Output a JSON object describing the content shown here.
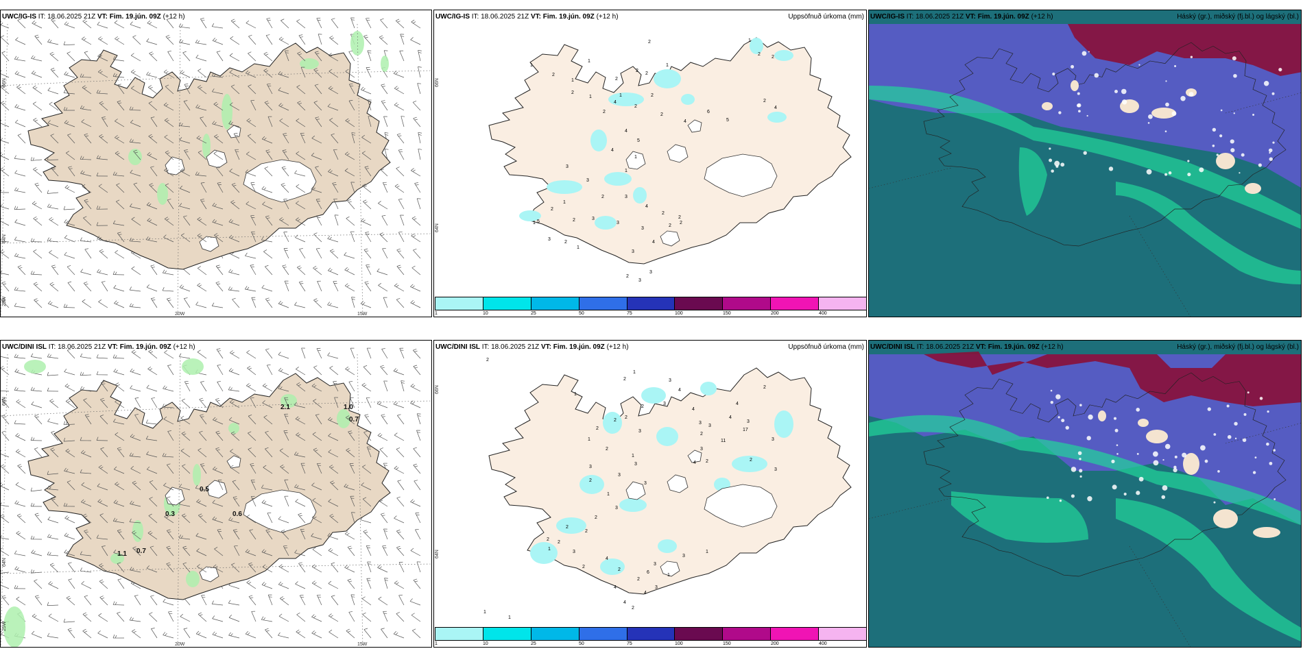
{
  "panels": {
    "top_left": {
      "model": "UWC/IG-IS",
      "it_label": "IT:",
      "it": "18.06.2025 21Z",
      "vt_label": "VT:",
      "vt": "Fim. 19.jún. 09Z",
      "lead": "(+12 h)"
    },
    "top_mid": {
      "model": "UWC/IG-IS",
      "it_label": "IT:",
      "it": "18.06.2025 21Z",
      "vt_label": "VT:",
      "vt": "Fim. 19.jún. 09Z",
      "lead": "(+12 h)",
      "right_title": "Uppsöfnuð úrkoma (mm)"
    },
    "top_right": {
      "model": "UWC/IG-IS",
      "it_label": "IT:",
      "it": "18.06.2025 21Z",
      "vt_label": "VT:",
      "vt": "Fim. 19.jún. 09Z",
      "lead": "(+12 h)",
      "right_title": "Háský (gr.), miðský (fj.bl.) og lágský (bl.)"
    },
    "bot_left": {
      "model": "UWC/DINI ISL",
      "it_label": "IT:",
      "it": "18.06.2025 21Z",
      "vt_label": "VT:",
      "vt": "Fim. 19.jún. 09Z",
      "lead": "(+12 h)"
    },
    "bot_mid": {
      "model": "UWC/DINI ISL",
      "it_label": "IT:",
      "it": "18.06.2025 21Z",
      "vt_label": "VT:",
      "vt": "Fim. 19.jún. 09Z",
      "lead": "(+12 h)",
      "right_title": "Uppsöfnuð úrkoma (mm)"
    },
    "bot_right": {
      "model": "UWC/DINI ISL",
      "it_label": "IT:",
      "it": "18.06.2025 21Z",
      "vt_label": "VT:",
      "vt": "Fim. 19.jún. 09Z",
      "lead": "(+12 h)",
      "right_title": "Háský (gr.), miðský (fj.bl.) og lágský (bl.)"
    }
  },
  "axes": {
    "lat_66": "66N",
    "lat_64": "64N",
    "lon_25": "25W",
    "lon_20": "20W",
    "lon_15": "15W"
  },
  "colorbar": {
    "ticks": [
      "1",
      "10",
      "25",
      "50",
      "75",
      "100",
      "150",
      "200",
      "400"
    ],
    "colors": [
      "#aaf5f5",
      "#00e5ea",
      "#00b8e8",
      "#2f6fe8",
      "#2533b8",
      "#6a0a50",
      "#b00a8a",
      "#f014b4",
      "#f5b4f0"
    ]
  },
  "colors": {
    "land": "#e8d8c4",
    "land_precip": "#faeee2",
    "glacier": "#ffffff",
    "wind_precip": "#aef0ae",
    "precip_cell": "#aaf5f5",
    "high_cloud": "#8a1038",
    "mid_cloud": "#5a5ac8",
    "low_cloud": "#1f8a88",
    "low_cloud_bright": "#22d59a"
  },
  "wind_values": {
    "top": [],
    "bottom": [
      "2.1",
      "1.0",
      "0.7",
      "0.5",
      "0.3",
      "0.6",
      "1.1",
      "0.7"
    ]
  },
  "precip_values": {
    "top": [
      "2",
      "1",
      "2",
      "2",
      "1",
      "1",
      "2",
      "1",
      "2",
      "2",
      "2",
      "1",
      "2",
      "1",
      "1",
      "2",
      "2",
      "2",
      "2",
      "4",
      "2",
      "4",
      "4",
      "6",
      "5",
      "4",
      "5",
      "4",
      "1",
      "3",
      "1",
      "3",
      "2",
      "3",
      "4",
      "2",
      "2",
      "1",
      "2",
      "3",
      "3",
      "4",
      "3",
      "2",
      "2",
      "2",
      "5",
      "3",
      "2",
      "1",
      "2",
      "3",
      "3",
      "3",
      "1"
    ],
    "bottom": [
      "2",
      "1",
      "1",
      "2",
      "3",
      "4",
      "3",
      "2",
      "2",
      "2",
      "2",
      "3",
      "1",
      "2",
      "1",
      "3",
      "3",
      "3",
      "2",
      "3",
      "1",
      "3",
      "2",
      "2",
      "2",
      "2",
      "1",
      "3",
      "4",
      "2",
      "2",
      "4",
      "4",
      "3",
      "3",
      "2",
      "3",
      "4",
      "2",
      "11",
      "17",
      "4",
      "4",
      "2",
      "3",
      "3",
      "2",
      "3",
      "1",
      "3",
      "4",
      "2",
      "4",
      "3",
      "2",
      "6",
      "2",
      "1",
      "1",
      "1",
      "3"
    ]
  }
}
